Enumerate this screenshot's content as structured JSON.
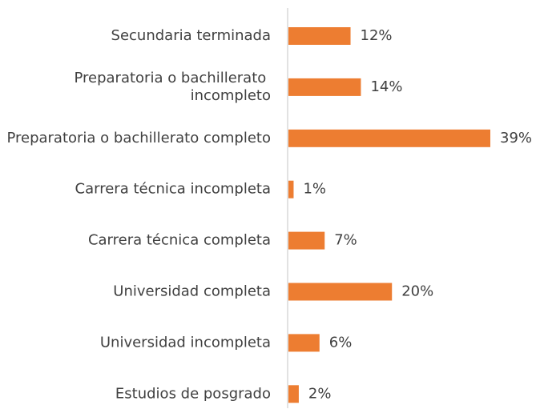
{
  "chart_data": {
    "type": "bar",
    "orientation": "horizontal",
    "categories": [
      "Secundaria terminada",
      "Preparatoria o bachillerato incompleto",
      "Preparatoria o bachillerato completo",
      "Carrera técnica incompleta",
      "Carrera técnica completa",
      "Universidad completa",
      "Universidad incompleta",
      "Estudios de posgrado"
    ],
    "values": [
      12,
      14,
      39,
      1,
      7,
      20,
      6,
      2
    ],
    "value_labels": [
      "12%",
      "14%",
      "39%",
      "1%",
      "7%",
      "20%",
      "6%",
      "2%"
    ],
    "color": "#ed7d31"
  }
}
